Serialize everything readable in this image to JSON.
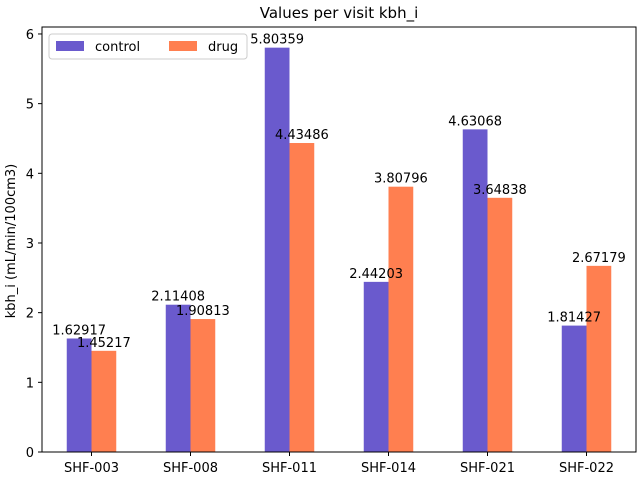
{
  "chart_data": {
    "type": "bar",
    "title": "Values per visit kbh_i",
    "xlabel": "",
    "ylabel": "kbh_i (mL/min/100cm3)",
    "categories": [
      "SHF-003",
      "SHF-008",
      "SHF-011",
      "SHF-014",
      "SHF-021",
      "SHF-022"
    ],
    "ylim": [
      0,
      6.1
    ],
    "yticks": [
      0,
      1,
      2,
      3,
      4,
      5,
      6
    ],
    "grid": false,
    "legend_position": "top-left",
    "series": [
      {
        "name": "control",
        "color": "#6a5acd",
        "values": [
          1.62917,
          2.11408,
          5.80359,
          2.44203,
          4.63068,
          1.81427
        ],
        "labels": [
          "1.62917",
          "2.11408",
          "5.80359",
          "2.44203",
          "4.63068",
          "1.81427"
        ]
      },
      {
        "name": "drug",
        "color": "#ff7f50",
        "values": [
          1.45217,
          1.90813,
          4.43486,
          3.80796,
          3.64838,
          2.67179
        ],
        "labels": [
          "1.45217",
          "1.90813",
          "4.43486",
          "3.80796",
          "3.64838",
          "2.67179"
        ]
      }
    ]
  }
}
